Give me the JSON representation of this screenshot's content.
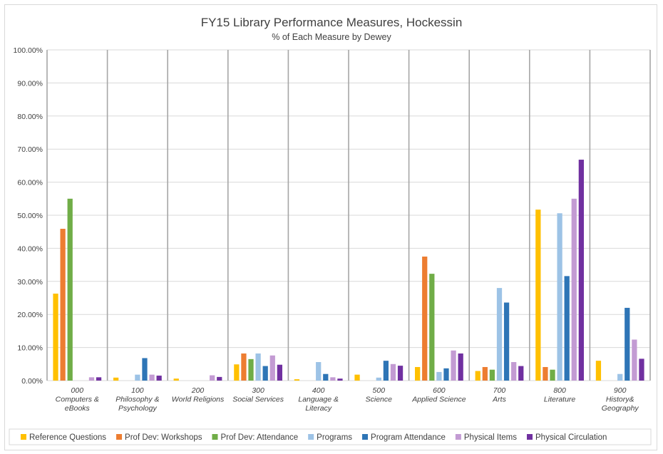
{
  "chart_data": {
    "type": "bar",
    "title": "FY15 Library Performance Measures, Hockessin",
    "subtitle": "% of Each Measure by Dewey",
    "xlabel": "",
    "ylabel": "",
    "ylim": [
      0,
      100
    ],
    "yticks": [
      "0.00%",
      "10.00%",
      "20.00%",
      "30.00%",
      "40.00%",
      "50.00%",
      "60.00%",
      "70.00%",
      "80.00%",
      "90.00%",
      "100.00%"
    ],
    "grid": true,
    "legend_position": "bottom",
    "categories": [
      [
        "000",
        "Computers &",
        "eBooks"
      ],
      [
        "100",
        "Philosophy &",
        "Psychology"
      ],
      [
        "200",
        "World Religions"
      ],
      [
        "300",
        "Social Services"
      ],
      [
        "400",
        "Language &",
        "Literacy"
      ],
      [
        "500",
        "Science"
      ],
      [
        "600",
        "Applied Science"
      ],
      [
        "700",
        "Arts"
      ],
      [
        "800",
        "Literature"
      ],
      [
        "900",
        "History&",
        "Geography"
      ]
    ],
    "series": [
      {
        "name": "Reference Questions",
        "color": "#ffc000",
        "values": [
          26.3,
          0.9,
          0.6,
          4.9,
          0.4,
          1.8,
          4.1,
          2.9,
          51.7,
          6.0
        ]
      },
      {
        "name": "Prof Dev: Workshops",
        "color": "#ed7d31",
        "values": [
          45.9,
          0,
          0,
          8.2,
          0,
          0,
          37.5,
          4.1,
          4.1,
          0
        ]
      },
      {
        "name": "Prof Dev: Attendance",
        "color": "#70ad47",
        "values": [
          55.0,
          0,
          0,
          6.5,
          0,
          0,
          32.3,
          3.3,
          3.3,
          0
        ]
      },
      {
        "name": "Programs",
        "color": "#9dc3e6",
        "values": [
          0,
          1.8,
          0,
          8.2,
          5.6,
          0.9,
          2.6,
          28.0,
          50.6,
          2.0
        ]
      },
      {
        "name": "Program Attendance",
        "color": "#2e75b6",
        "values": [
          0,
          6.8,
          0,
          4.4,
          2.0,
          6.0,
          3.7,
          23.6,
          31.6,
          22.0
        ]
      },
      {
        "name": "Physical Items",
        "color": "#c39bd3",
        "values": [
          1.0,
          1.8,
          1.6,
          7.6,
          1.0,
          5.0,
          9.1,
          5.6,
          55.0,
          12.4
        ]
      },
      {
        "name": "Physical Circulation",
        "color": "#7030a0",
        "values": [
          1.0,
          1.5,
          1.1,
          4.8,
          0.6,
          4.5,
          8.2,
          4.4,
          66.8,
          6.6
        ]
      }
    ]
  }
}
